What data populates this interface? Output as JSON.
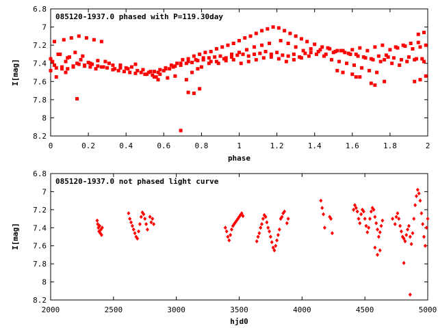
{
  "colors": {
    "points": "#ff0000",
    "axes": "#000000",
    "background": "#ffffff"
  },
  "chart_data": [
    {
      "type": "scatter",
      "title": "085120-1937.0 phased with P=119.30day",
      "xlabel": "phase",
      "ylabel": "I[mag]",
      "xlim": [
        0,
        2
      ],
      "ylim": [
        6.8,
        8.2
      ],
      "y_inverted": true,
      "x_ticks": [
        "0",
        "0.2",
        "0.4",
        "0.6",
        "0.8",
        "1",
        "1.2",
        "1.4",
        "1.6",
        "1.8",
        "2"
      ],
      "y_ticks": [
        "6.8",
        "7",
        "7.2",
        "7.4",
        "7.6",
        "7.8",
        "8",
        "8.2"
      ],
      "series": [
        {
          "marker": "filled-square",
          "x": [
            0.0,
            0.02,
            0.04,
            0.06,
            0.08,
            0.1,
            0.12,
            0.14,
            0.16,
            0.18,
            0.2,
            0.22,
            0.25,
            0.28,
            0.31,
            0.34,
            0.37,
            0.4,
            0.43,
            0.46,
            0.49,
            0.52,
            0.55,
            0.58,
            0.61,
            0.64,
            0.67,
            0.7,
            0.73,
            0.76,
            0.79,
            0.82,
            0.85,
            0.88,
            0.91,
            0.94,
            0.97,
            1.0,
            1.03,
            1.06,
            1.09,
            1.12,
            1.15,
            1.18,
            1.21,
            1.24,
            1.27,
            1.3,
            1.33,
            1.36,
            1.4,
            1.44,
            1.48,
            1.52,
            1.56,
            1.6,
            1.64,
            1.68,
            1.72,
            1.76,
            1.8,
            1.84,
            1.88,
            1.92,
            1.96,
            1.99,
            0.0,
            0.03,
            0.06,
            0.09,
            0.12,
            0.15,
            0.18,
            0.21,
            0.24,
            0.27,
            0.3,
            0.33,
            0.36,
            0.39,
            0.42,
            0.45,
            0.48,
            0.51,
            0.54,
            0.57,
            0.6,
            0.63,
            0.66,
            0.69,
            0.72,
            0.75,
            0.78,
            0.81,
            0.84,
            0.87,
            0.9,
            0.93,
            0.96,
            0.99,
            1.02,
            1.05,
            1.08,
            1.11,
            1.14,
            1.17,
            1.2,
            1.23,
            1.26,
            1.29,
            1.32,
            1.35,
            1.38,
            1.42,
            1.46,
            1.5,
            1.54,
            1.58,
            1.62,
            1.66,
            1.7,
            1.74,
            1.78,
            1.82,
            1.86,
            1.9,
            1.94,
            1.98,
            0.01,
            0.05,
            0.09,
            0.13,
            0.17,
            0.21,
            0.25,
            0.29,
            0.33,
            0.37,
            0.41,
            0.45,
            0.49,
            0.53,
            0.57,
            0.61,
            0.65,
            0.69,
            0.73,
            0.77,
            0.81,
            0.85,
            0.89,
            0.93,
            0.97,
            1.01,
            1.05,
            1.09,
            1.13,
            1.17,
            1.21,
            1.25,
            1.29,
            1.33,
            1.37,
            1.41,
            1.45,
            1.49,
            1.53,
            1.57,
            1.61,
            1.65,
            1.69,
            1.73,
            1.77,
            1.81,
            1.85,
            1.89,
            1.93,
            1.97,
            0.02,
            0.07,
            0.11,
            0.15,
            0.19,
            0.23,
            0.27,
            0.55,
            0.58,
            0.62,
            0.66,
            0.72,
            0.75,
            0.78,
            0.8,
            0.84,
            0.88,
            0.92,
            0.96,
            1.0,
            1.04,
            1.08,
            1.12,
            1.16,
            1.22,
            1.26,
            1.3,
            1.34,
            1.38,
            1.43,
            1.47,
            1.51,
            1.55,
            1.59,
            1.63,
            1.67,
            1.71,
            1.75,
            1.79,
            1.83,
            1.87,
            1.91,
            1.95,
            0.14,
            0.69,
            0.73,
            0.76,
            0.79,
            0.57,
            0.56,
            1.7,
            1.72,
            1.6,
            1.62,
            1.93,
            1.96,
            1.99,
            1.98,
            1.95,
            1.77,
            1.52,
            1.55,
            1.64,
            0.5,
            0.03,
            0.08
          ],
          "y": [
            7.35,
            7.42,
            7.3,
            7.46,
            7.38,
            7.33,
            7.44,
            7.4,
            7.36,
            7.43,
            7.39,
            7.41,
            7.37,
            7.44,
            7.4,
            7.46,
            7.42,
            7.45,
            7.44,
            7.48,
            7.47,
            7.5,
            7.49,
            7.47,
            7.45,
            7.42,
            7.4,
            7.36,
            7.35,
            7.32,
            7.3,
            7.28,
            7.27,
            7.24,
            7.22,
            7.2,
            7.18,
            7.15,
            7.12,
            7.1,
            7.07,
            7.04,
            7.02,
            7.0,
            7.01,
            7.04,
            7.07,
            7.1,
            7.13,
            7.16,
            7.19,
            7.22,
            7.24,
            7.26,
            7.28,
            7.25,
            7.23,
            7.26,
            7.22,
            7.2,
            7.25,
            7.23,
            7.21,
            7.24,
            7.22,
            7.2,
            7.48,
            7.45,
            7.44,
            7.46,
            7.43,
            7.41,
            7.42,
            7.44,
            7.46,
            7.44,
            7.45,
            7.47,
            7.48,
            7.49,
            7.5,
            7.51,
            7.5,
            7.52,
            7.53,
            7.5,
            7.48,
            7.46,
            7.43,
            7.42,
            7.4,
            7.39,
            7.37,
            7.36,
            7.34,
            7.33,
            7.32,
            7.34,
            7.33,
            7.31,
            7.3,
            7.32,
            7.3,
            7.29,
            7.27,
            7.3,
            7.28,
            7.31,
            7.32,
            7.3,
            7.33,
            7.29,
            7.28,
            7.27,
            7.3,
            7.28,
            7.26,
            7.29,
            7.3,
            7.33,
            7.35,
            7.32,
            7.31,
            7.34,
            7.36,
            7.33,
            7.35,
            7.38,
            7.38,
            7.3,
            7.34,
            7.28,
            7.32,
            7.4,
            7.43,
            7.38,
            7.42,
            7.45,
            7.46,
            7.41,
            7.47,
            7.49,
            7.5,
            7.46,
            7.44,
            7.4,
            7.38,
            7.36,
            7.34,
            7.38,
            7.4,
            7.37,
            7.36,
            7.4,
            7.38,
            7.36,
            7.34,
            7.33,
            7.35,
            7.38,
            7.36,
            7.34,
            7.32,
            7.3,
            7.32,
            7.36,
            7.38,
            7.4,
            7.42,
            7.45,
            7.48,
            7.5,
            7.36,
            7.4,
            7.42,
            7.38,
            7.36,
            7.35,
            7.16,
            7.14,
            7.12,
            7.1,
            7.12,
            7.14,
            7.16,
            7.55,
            7.52,
            7.56,
            7.54,
            7.58,
            7.5,
            7.46,
            7.44,
            7.4,
            7.38,
            7.35,
            7.3,
            7.28,
            7.25,
            7.22,
            7.2,
            7.18,
            7.15,
            7.18,
            7.22,
            7.26,
            7.24,
            7.25,
            7.23,
            7.27,
            7.26,
            7.3,
            7.32,
            7.34,
            7.36,
            7.38,
            7.33,
            7.22,
            7.2,
            7.18,
            7.17,
            7.79,
            8.14,
            7.72,
            7.73,
            7.68,
            7.58,
            7.55,
            7.62,
            7.64,
            7.52,
            7.55,
            7.6,
            7.58,
            7.54,
            7.06,
            7.08,
            7.6,
            7.48,
            7.5,
            7.55,
            7.52,
            7.55,
            7.5
          ]
        }
      ]
    },
    {
      "type": "scatter",
      "title": "085120-1937.0 not phased light curve",
      "xlabel": "hjd0",
      "ylabel": "I[mag]",
      "xlim": [
        2000,
        5000
      ],
      "ylim": [
        6.8,
        8.2
      ],
      "y_inverted": true,
      "x_ticks": [
        "2000",
        "2500",
        "3000",
        "3500",
        "4000",
        "4500",
        "5000"
      ],
      "y_ticks": [
        "6.8",
        "7",
        "7.2",
        "7.4",
        "7.6",
        "7.8",
        "8",
        "8.2"
      ],
      "series": [
        {
          "marker": "filled-diamond",
          "x": [
            2370,
            2375,
            2380,
            2385,
            2390,
            2395,
            2400,
            2405,
            2410,
            2620,
            2630,
            2640,
            2650,
            2660,
            2670,
            2680,
            2690,
            2700,
            2710,
            2720,
            2730,
            2740,
            2750,
            2760,
            2770,
            2790,
            2800,
            2810,
            2820,
            3390,
            3400,
            3410,
            3420,
            3430,
            3440,
            3450,
            3460,
            3470,
            3480,
            3490,
            3500,
            3510,
            3520,
            3530,
            3640,
            3650,
            3660,
            3670,
            3680,
            3690,
            3700,
            3710,
            3720,
            3730,
            3740,
            3750,
            3760,
            3770,
            3780,
            3790,
            3800,
            3810,
            3820,
            3830,
            3840,
            3850,
            3860,
            3880,
            3890,
            4150,
            4160,
            4170,
            4180,
            4220,
            4230,
            4240,
            4410,
            4420,
            4430,
            4440,
            4450,
            4460,
            4470,
            4480,
            4490,
            4500,
            4510,
            4520,
            4530,
            4540,
            4550,
            4560,
            4570,
            4580,
            4590,
            4600,
            4610,
            4620,
            4630,
            4640,
            4720,
            4740,
            4750,
            4760,
            4770,
            4780,
            4790,
            4800,
            4810,
            4820,
            4830,
            4840,
            4850,
            4860,
            4870,
            4880,
            4890,
            4900,
            4910,
            4920,
            4930,
            4940,
            4950,
            4960,
            4970,
            4980,
            4990,
            5000,
            4600,
            4620,
            4810,
            4860,
            4580
          ],
          "y": [
            7.32,
            7.36,
            7.4,
            7.44,
            7.38,
            7.46,
            7.42,
            7.48,
            7.4,
            7.24,
            7.3,
            7.34,
            7.38,
            7.42,
            7.46,
            7.5,
            7.52,
            7.44,
            7.36,
            7.28,
            7.23,
            7.25,
            7.3,
            7.36,
            7.42,
            7.28,
            7.34,
            7.3,
            7.36,
            7.4,
            7.44,
            7.5,
            7.54,
            7.48,
            7.42,
            7.38,
            7.36,
            7.34,
            7.32,
            7.3,
            7.28,
            7.26,
            7.24,
            7.27,
            7.55,
            7.5,
            7.46,
            7.4,
            7.36,
            7.3,
            7.26,
            7.28,
            7.34,
            7.4,
            7.44,
            7.5,
            7.56,
            7.62,
            7.65,
            7.6,
            7.54,
            7.48,
            7.42,
            7.3,
            7.28,
            7.24,
            7.22,
            7.35,
            7.3,
            7.1,
            7.18,
            7.25,
            7.4,
            7.28,
            7.3,
            7.46,
            7.2,
            7.15,
            7.18,
            7.22,
            7.3,
            7.35,
            7.25,
            7.2,
            7.22,
            7.3,
            7.38,
            7.45,
            7.4,
            7.3,
            7.22,
            7.18,
            7.2,
            7.28,
            7.35,
            7.42,
            7.5,
            7.45,
            7.38,
            7.32,
            7.3,
            7.36,
            7.28,
            7.24,
            7.3,
            7.38,
            7.44,
            7.5,
            7.52,
            7.55,
            7.48,
            7.42,
            7.38,
            7.5,
            7.58,
            7.46,
            7.3,
            7.15,
            7.05,
            6.98,
            7.02,
            7.1,
            7.24,
            7.36,
            7.5,
            7.6,
            7.4,
            7.3,
            7.7,
            7.65,
            7.79,
            8.14,
            7.62
          ]
        }
      ]
    }
  ]
}
